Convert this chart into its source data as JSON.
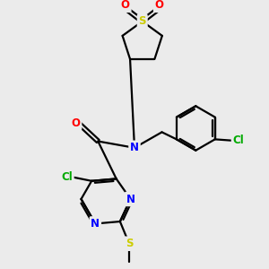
{
  "bg_color": "#ebebeb",
  "atom_colors": {
    "C": "#000000",
    "N": "#0000ff",
    "O": "#ff0000",
    "S": "#cccc00",
    "Cl": "#00aa00",
    "H": "#000000"
  },
  "bond_color": "#000000",
  "bond_width": 1.6,
  "dbo": 0.07
}
